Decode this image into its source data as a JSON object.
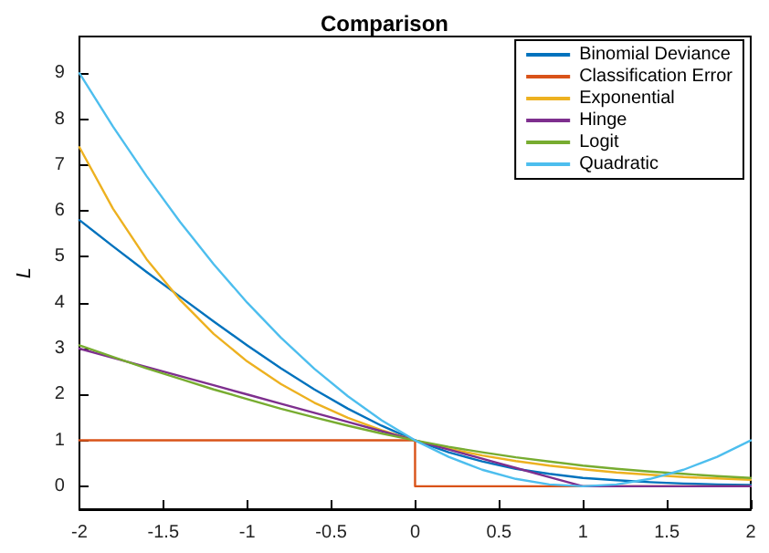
{
  "chart_data": {
    "type": "line",
    "title": "Comparison",
    "ylabel": "L",
    "x": [
      -2,
      -1.8,
      -1.6,
      -1.4,
      -1.2,
      -1,
      -0.8,
      -0.6,
      -0.4,
      -0.2,
      0,
      0.2,
      0.4,
      0.6,
      0.8,
      1,
      1.2,
      1.4,
      1.6,
      1.8,
      2
    ],
    "series": [
      {
        "name": "Binomial Deviance",
        "color": "#0072bd",
        "values": [
          5.8,
          5.23,
          4.67,
          4.13,
          3.59,
          3.07,
          2.57,
          2.11,
          1.69,
          1.32,
          1,
          0.74,
          0.54,
          0.38,
          0.27,
          0.18,
          0.13,
          0.09,
          0.06,
          0.04,
          0.03
        ]
      },
      {
        "name": "Classification Error",
        "color": "#d95319",
        "x": [
          -2,
          0,
          0,
          2
        ],
        "values": [
          1,
          1,
          0,
          0
        ]
      },
      {
        "name": "Exponential",
        "color": "#edb120",
        "values": [
          7.39,
          6.05,
          4.95,
          4.06,
          3.32,
          2.72,
          2.23,
          1.82,
          1.49,
          1.22,
          1,
          0.82,
          0.67,
          0.55,
          0.45,
          0.37,
          0.3,
          0.25,
          0.2,
          0.17,
          0.14
        ]
      },
      {
        "name": "Hinge",
        "color": "#7e2f8e",
        "values": [
          3,
          2.8,
          2.6,
          2.4,
          2.2,
          2,
          1.8,
          1.6,
          1.4,
          1.2,
          1,
          0.8,
          0.6,
          0.4,
          0.2,
          0,
          0,
          0,
          0,
          0,
          0
        ]
      },
      {
        "name": "Logit",
        "color": "#77ac30",
        "values": [
          3.07,
          2.82,
          2.57,
          2.34,
          2.11,
          1.9,
          1.69,
          1.5,
          1.32,
          1.15,
          1,
          0.86,
          0.74,
          0.63,
          0.54,
          0.45,
          0.38,
          0.32,
          0.27,
          0.22,
          0.18
        ]
      },
      {
        "name": "Quadratic",
        "color": "#4dbeee",
        "values": [
          9,
          7.84,
          6.76,
          5.76,
          4.84,
          4,
          3.24,
          2.56,
          1.96,
          1.44,
          1,
          0.64,
          0.36,
          0.16,
          0.04,
          0,
          0.04,
          0.16,
          0.36,
          0.64,
          1
        ]
      }
    ],
    "xlim": [
      -2,
      2
    ],
    "xticks": [
      -2,
      -1.5,
      -1,
      -0.5,
      0,
      0.5,
      1,
      1.5,
      2
    ],
    "ylim": [
      -0.5,
      9.8
    ],
    "yticks": [
      0,
      1,
      2,
      3,
      4,
      5,
      6,
      7,
      8,
      9
    ],
    "grid": false,
    "legend": "top right",
    "marker": "none",
    "line_style": "solid"
  }
}
